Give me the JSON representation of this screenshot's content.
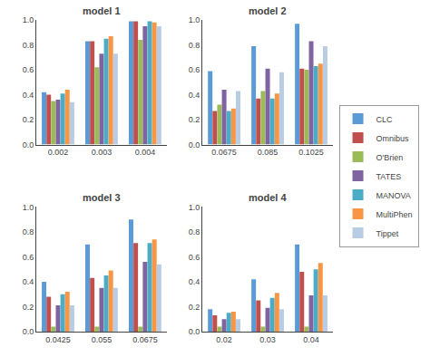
{
  "chart_data": [
    {
      "type": "bar",
      "title": "model 1",
      "categories": [
        "0.002",
        "0.003",
        "0.004"
      ],
      "series": [
        {
          "name": "CLC",
          "color": "#5b9bd5",
          "values": [
            0.42,
            0.83,
            0.99
          ]
        },
        {
          "name": "Omnibus",
          "color": "#c0504d",
          "values": [
            0.4,
            0.83,
            0.99
          ]
        },
        {
          "name": "O'Brien",
          "color": "#9bbb59",
          "values": [
            0.35,
            0.62,
            0.84
          ]
        },
        {
          "name": "TATES",
          "color": "#8064a2",
          "values": [
            0.36,
            0.73,
            0.95
          ]
        },
        {
          "name": "MANOVA",
          "color": "#4bacc6",
          "values": [
            0.41,
            0.85,
            0.99
          ]
        },
        {
          "name": "MultiPhen",
          "color": "#f79646",
          "values": [
            0.44,
            0.87,
            0.98
          ]
        },
        {
          "name": "Tippet",
          "color": "#b8cce4",
          "values": [
            0.34,
            0.73,
            0.95
          ]
        }
      ],
      "ylim": [
        0.0,
        1.0
      ],
      "yticks": [
        {
          "value": 0,
          "label": "0.0"
        },
        0.2,
        0.4,
        0.6,
        0.8,
        {
          "value": 1,
          "label": "1.0"
        }
      ],
      "grid": false
    },
    {
      "type": "bar",
      "title": "model 2",
      "categories": [
        "0.0675",
        "0.085",
        "0.1025"
      ],
      "series": [
        {
          "name": "CLC",
          "color": "#5b9bd5",
          "values": [
            0.59,
            0.79,
            0.97
          ]
        },
        {
          "name": "Omnibus",
          "color": "#c0504d",
          "values": [
            0.27,
            0.37,
            0.61
          ]
        },
        {
          "name": "O'Brien",
          "color": "#9bbb59",
          "values": [
            0.32,
            0.43,
            0.6
          ]
        },
        {
          "name": "TATES",
          "color": "#8064a2",
          "values": [
            0.44,
            0.61,
            0.83
          ]
        },
        {
          "name": "MANOVA",
          "color": "#4bacc6",
          "values": [
            0.27,
            0.37,
            0.63
          ]
        },
        {
          "name": "MultiPhen",
          "color": "#f79646",
          "values": [
            0.29,
            0.41,
            0.65
          ]
        },
        {
          "name": "Tippet",
          "color": "#b8cce4",
          "values": [
            0.43,
            0.58,
            0.79
          ]
        }
      ],
      "ylim": [
        0.0,
        1.0
      ],
      "yticks": [
        {
          "value": 0,
          "label": "0.0"
        },
        0.2,
        0.4,
        0.6,
        0.8,
        {
          "value": 1,
          "label": "1.0"
        }
      ],
      "grid": false
    },
    {
      "type": "bar",
      "title": "model 3",
      "categories": [
        "0.0425",
        "0.055",
        "0.0675"
      ],
      "series": [
        {
          "name": "CLC",
          "color": "#5b9bd5",
          "values": [
            0.4,
            0.7,
            0.9
          ]
        },
        {
          "name": "Omnibus",
          "color": "#c0504d",
          "values": [
            0.28,
            0.43,
            0.71
          ]
        },
        {
          "name": "O'Brien",
          "color": "#9bbb59",
          "values": [
            0.04,
            0.04,
            0.04
          ]
        },
        {
          "name": "TATES",
          "color": "#8064a2",
          "values": [
            0.21,
            0.35,
            0.56
          ]
        },
        {
          "name": "MANOVA",
          "color": "#4bacc6",
          "values": [
            0.3,
            0.45,
            0.71
          ]
        },
        {
          "name": "MultiPhen",
          "color": "#f79646",
          "values": [
            0.32,
            0.49,
            0.74
          ]
        },
        {
          "name": "Tippet",
          "color": "#b8cce4",
          "values": [
            0.21,
            0.35,
            0.54
          ]
        }
      ],
      "ylim": [
        0.0,
        1.0
      ],
      "yticks": [
        {
          "value": 0,
          "label": "0.0"
        },
        0.2,
        0.4,
        0.6,
        0.8,
        {
          "value": 1,
          "label": "1.0"
        }
      ],
      "grid": false
    },
    {
      "type": "bar",
      "title": "model 4",
      "categories": [
        "0.02",
        "0.03",
        "0.04"
      ],
      "series": [
        {
          "name": "CLC",
          "color": "#5b9bd5",
          "values": [
            0.18,
            0.42,
            0.7
          ]
        },
        {
          "name": "Omnibus",
          "color": "#c0504d",
          "values": [
            0.13,
            0.25,
            0.48
          ]
        },
        {
          "name": "O'Brien",
          "color": "#9bbb59",
          "values": [
            0.04,
            0.04,
            0.04
          ]
        },
        {
          "name": "TATES",
          "color": "#8064a2",
          "values": [
            0.1,
            0.19,
            0.29
          ]
        },
        {
          "name": "MANOVA",
          "color": "#4bacc6",
          "values": [
            0.15,
            0.27,
            0.5
          ]
        },
        {
          "name": "MultiPhen",
          "color": "#f79646",
          "values": [
            0.16,
            0.31,
            0.55
          ]
        },
        {
          "name": "Tippet",
          "color": "#b8cce4",
          "values": [
            0.1,
            0.18,
            0.29
          ]
        }
      ],
      "ylim": [
        0.0,
        1.0
      ],
      "yticks": [
        {
          "value": 0,
          "label": "0.0"
        },
        0.2,
        0.4,
        0.6,
        0.8,
        {
          "value": 1,
          "label": "1.0"
        }
      ],
      "grid": false,
      "legend": "right"
    }
  ]
}
